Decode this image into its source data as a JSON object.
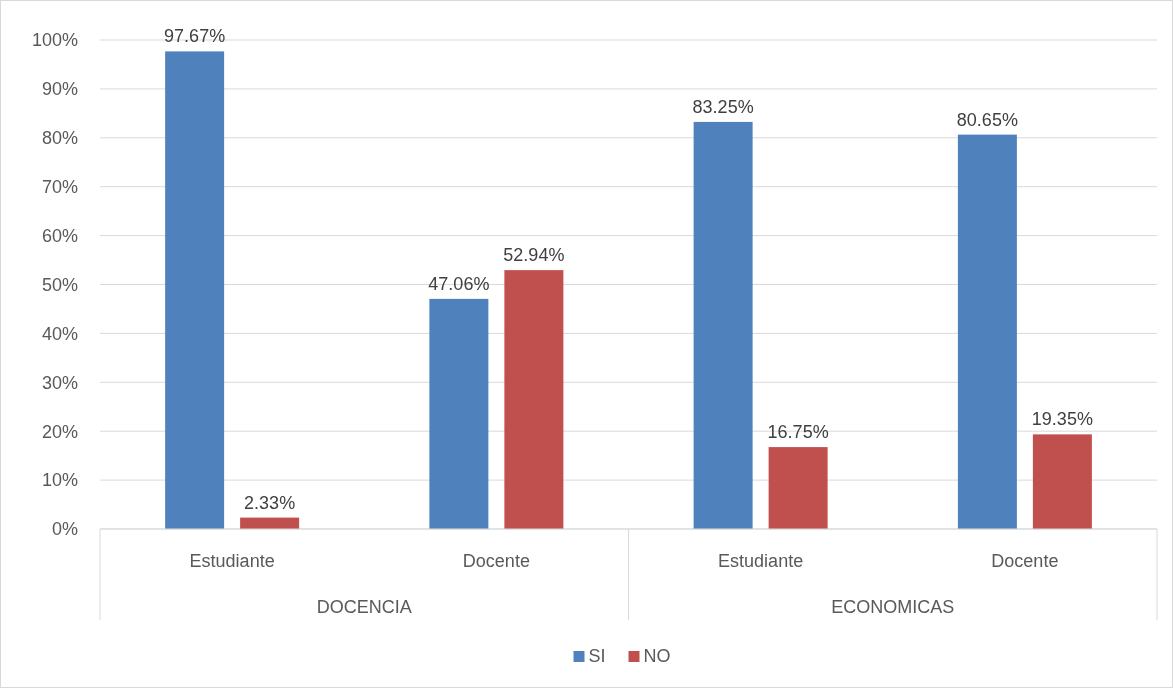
{
  "chart_data": {
    "type": "bar",
    "categories": [
      "Estudiante",
      "Docente",
      "Estudiante",
      "Docente"
    ],
    "series": [
      {
        "name": "SI",
        "color": "#4f81bd",
        "values": [
          97.67,
          47.06,
          83.25,
          80.65
        ],
        "value_labels": [
          "97.67%",
          "47.06%",
          "83.25%",
          "80.65%"
        ]
      },
      {
        "name": "NO",
        "color": "#c0504d",
        "values": [
          2.33,
          52.94,
          16.75,
          19.35
        ],
        "value_labels": [
          "2.33%",
          "52.94%",
          "16.75%",
          "19.35%"
        ]
      }
    ],
    "ylim": [
      0,
      100
    ],
    "yticks": [
      {
        "value": 0,
        "label": "0%"
      },
      {
        "value": 10,
        "label": "10%"
      },
      {
        "value": 20,
        "label": "20%"
      },
      {
        "value": 30,
        "label": "30%"
      },
      {
        "value": 40,
        "label": "40%"
      },
      {
        "value": 50,
        "label": "50%"
      },
      {
        "value": 60,
        "label": "60%"
      },
      {
        "value": 70,
        "label": "70%"
      },
      {
        "value": 80,
        "label": "80%"
      },
      {
        "value": 90,
        "label": "90%"
      },
      {
        "value": 100,
        "label": "100%"
      }
    ],
    "annotations": [
      "DOCENCIA",
      "ECONOMICAS"
    ],
    "grid": "y",
    "legend": "bottom"
  }
}
